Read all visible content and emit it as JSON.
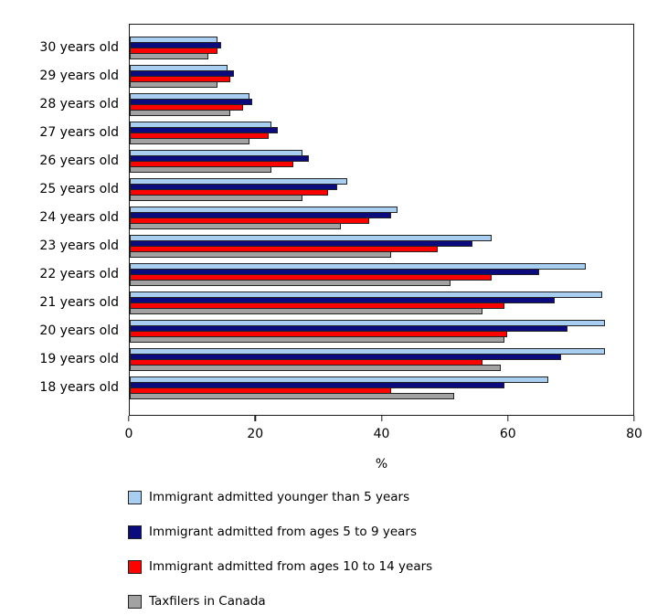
{
  "chart_data": {
    "type": "bar",
    "orientation": "horizontal",
    "title": "",
    "xlabel": "%",
    "ylabel": "",
    "xlim": [
      0,
      80
    ],
    "xticks": [
      0,
      20,
      40,
      60,
      80
    ],
    "grid": false,
    "legend_position": "bottom-left",
    "categories": [
      "30 years old",
      "29 years old",
      "28 years old",
      "27 years old",
      "26 years old",
      "25 years old",
      "24 years old",
      "23 years old",
      "22 years old",
      "21 years old",
      "20 years old",
      "19 years old",
      "18 years old"
    ],
    "series": [
      {
        "name": "Immigrant admitted younger than 5 years",
        "color": "#A8CEF2",
        "values": [
          14,
          15.5,
          19,
          22.5,
          27.5,
          34.5,
          42.5,
          57.5,
          72.5,
          75,
          75.5,
          75.5,
          66.5
        ]
      },
      {
        "name": "Immigrant admitted from ages 5 to 9 years",
        "color": "#0B0B7E",
        "values": [
          14.5,
          16.5,
          19.5,
          23.5,
          28.5,
          33,
          41.5,
          54.5,
          65,
          67.5,
          69.5,
          68.5,
          59.5
        ]
      },
      {
        "name": "Immigrant admitted from ages 10 to 14 years",
        "color": "#FB0300",
        "values": [
          14,
          16,
          18,
          22,
          26,
          31.5,
          38,
          49,
          57.5,
          59.5,
          60,
          56,
          41.5
        ]
      },
      {
        "name": "Taxfilers in Canada",
        "color": "#A2A2A2",
        "values": [
          12.5,
          14,
          16,
          19,
          22.5,
          27.5,
          33.5,
          41.5,
          51,
          56,
          59.5,
          59,
          51.5
        ]
      }
    ],
    "colors": {
      "bar_outline": "#222222",
      "plot_border": "#1a1a1a",
      "background": "#ffffff",
      "text": "#000000"
    }
  }
}
